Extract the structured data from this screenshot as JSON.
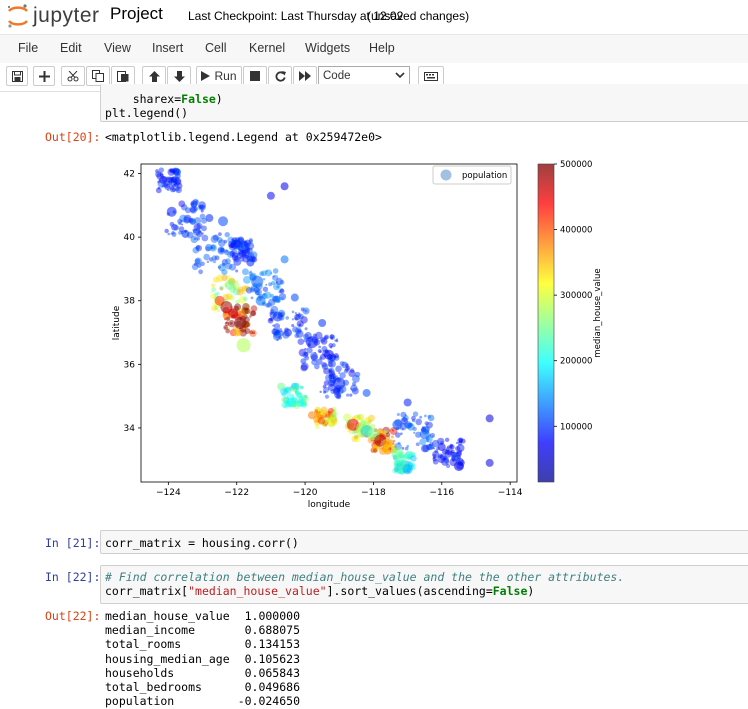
{
  "header": {
    "logo_text": "jupyter",
    "notebook_title": "Project",
    "checkpoint": "Last Checkpoint: Last Thursday at 12:02",
    "unsaved": "(unsaved changes)"
  },
  "menu": [
    "File",
    "Edit",
    "View",
    "Insert",
    "Cell",
    "Kernel",
    "Widgets",
    "Help"
  ],
  "toolbar": {
    "run_label": "Run",
    "cell_type": "Code",
    "icons": [
      "save-icon",
      "plus-icon",
      "cut-icon",
      "copy-icon",
      "paste-icon",
      "arrow-up-icon",
      "arrow-down-icon",
      "run-icon",
      "stop-icon",
      "restart-icon",
      "fast-forward-icon",
      "keyboard-icon"
    ]
  },
  "cells": {
    "c20": {
      "code_tail_1_pre": "    sharex=",
      "code_tail_1_kw": "False",
      "code_tail_1_post": ")",
      "code_tail_2": "plt.legend()",
      "out_prompt": "Out[20]:",
      "out_text": "<matplotlib.legend.Legend at 0x259472e0>"
    },
    "c21": {
      "in_prompt": "In [21]:",
      "code": "corr_matrix = housing.corr()"
    },
    "c22": {
      "in_prompt": "In [22]:",
      "comment": "# Find correlation between median_house_value and the the other attributes.",
      "code_pre": "corr_matrix[",
      "code_str": "\"median_house_value\"",
      "code_mid": "].sort_values(ascending=",
      "code_kw": "False",
      "code_post": ")",
      "out_prompt": "Out[22]:",
      "rows": [
        {
          "name": "median_house_value",
          "value": "1.000000"
        },
        {
          "name": "median_income",
          "value": "0.688075"
        },
        {
          "name": "total_rooms",
          "value": "0.134153"
        },
        {
          "name": "housing_median_age",
          "value": "0.105623"
        },
        {
          "name": "households",
          "value": "0.065843"
        },
        {
          "name": "total_bedrooms",
          "value": "0.049686"
        },
        {
          "name": "population",
          "value": "-0.024650"
        }
      ]
    }
  },
  "chart_data": {
    "type": "scatter",
    "xlabel": "longitude",
    "ylabel": "latitude",
    "xlim": [
      -124.8,
      -113.8
    ],
    "ylim": [
      32.3,
      42.3
    ],
    "xticks": [
      -124,
      -122,
      -120,
      -118,
      -116,
      -114
    ],
    "yticks": [
      34,
      36,
      38,
      40,
      42
    ],
    "legend": {
      "label": "population",
      "location": "top-right"
    },
    "colorbar": {
      "label": "median_house_value",
      "range": [
        15000,
        500000
      ],
      "ticks": [
        100000,
        200000,
        300000,
        400000,
        500000
      ],
      "colormap": "jet"
    },
    "points": [
      {
        "x": -124.15,
        "y": 41.8,
        "v": 80000,
        "s": 4
      },
      {
        "x": -123.9,
        "y": 40.8,
        "v": 90000,
        "s": 5
      },
      {
        "x": -123.5,
        "y": 40.1,
        "v": 100000,
        "s": 4
      },
      {
        "x": -122.8,
        "y": 40.6,
        "v": 95000,
        "s": 4
      },
      {
        "x": -122.4,
        "y": 40.5,
        "v": 110000,
        "s": 5
      },
      {
        "x": -122.0,
        "y": 39.8,
        "v": 90000,
        "s": 4
      },
      {
        "x": -121.8,
        "y": 39.7,
        "v": 100000,
        "s": 6
      },
      {
        "x": -121.6,
        "y": 39.2,
        "v": 95000,
        "s": 4
      },
      {
        "x": -122.2,
        "y": 38.5,
        "v": 250000,
        "s": 5
      },
      {
        "x": -122.5,
        "y": 38.0,
        "v": 420000,
        "s": 5
      },
      {
        "x": -122.3,
        "y": 37.8,
        "v": 480000,
        "s": 6
      },
      {
        "x": -122.1,
        "y": 37.6,
        "v": 450000,
        "s": 5
      },
      {
        "x": -121.9,
        "y": 37.3,
        "v": 500000,
        "s": 6
      },
      {
        "x": -122.0,
        "y": 37.0,
        "v": 350000,
        "s": 4
      },
      {
        "x": -121.8,
        "y": 36.6,
        "v": 280000,
        "s": 7
      },
      {
        "x": -121.4,
        "y": 38.6,
        "v": 120000,
        "s": 6
      },
      {
        "x": -121.3,
        "y": 38.0,
        "v": 130000,
        "s": 5
      },
      {
        "x": -120.8,
        "y": 37.5,
        "v": 100000,
        "s": 5
      },
      {
        "x": -120.5,
        "y": 37.0,
        "v": 90000,
        "s": 4
      },
      {
        "x": -119.8,
        "y": 36.7,
        "v": 85000,
        "s": 6
      },
      {
        "x": -119.3,
        "y": 36.3,
        "v": 80000,
        "s": 5
      },
      {
        "x": -119.0,
        "y": 35.4,
        "v": 90000,
        "s": 6
      },
      {
        "x": -120.7,
        "y": 35.3,
        "v": 250000,
        "s": 4
      },
      {
        "x": -120.4,
        "y": 34.8,
        "v": 200000,
        "s": 5
      },
      {
        "x": -119.8,
        "y": 34.4,
        "v": 380000,
        "s": 4
      },
      {
        "x": -119.2,
        "y": 34.2,
        "v": 300000,
        "s": 5
      },
      {
        "x": -118.6,
        "y": 34.1,
        "v": 450000,
        "s": 6
      },
      {
        "x": -118.3,
        "y": 34.0,
        "v": 280000,
        "s": 7
      },
      {
        "x": -118.2,
        "y": 33.9,
        "v": 180000,
        "s": 6
      },
      {
        "x": -118.0,
        "y": 33.8,
        "v": 260000,
        "s": 6
      },
      {
        "x": -117.8,
        "y": 33.6,
        "v": 480000,
        "s": 6
      },
      {
        "x": -117.6,
        "y": 33.5,
        "v": 350000,
        "s": 5
      },
      {
        "x": -117.3,
        "y": 33.2,
        "v": 250000,
        "s": 6
      },
      {
        "x": -117.2,
        "y": 32.8,
        "v": 230000,
        "s": 7
      },
      {
        "x": -117.0,
        "y": 32.7,
        "v": 160000,
        "s": 5
      },
      {
        "x": -117.3,
        "y": 34.1,
        "v": 110000,
        "s": 5
      },
      {
        "x": -116.5,
        "y": 33.8,
        "v": 120000,
        "s": 5
      },
      {
        "x": -116.0,
        "y": 33.4,
        "v": 80000,
        "s": 4
      },
      {
        "x": -115.5,
        "y": 32.8,
        "v": 70000,
        "s": 5
      },
      {
        "x": -114.6,
        "y": 32.9,
        "v": 60000,
        "s": 4
      },
      {
        "x": -114.6,
        "y": 34.3,
        "v": 60000,
        "s": 4
      },
      {
        "x": -117.0,
        "y": 34.8,
        "v": 90000,
        "s": 4
      },
      {
        "x": -118.2,
        "y": 35.1,
        "v": 110000,
        "s": 4
      },
      {
        "x": -119.5,
        "y": 37.3,
        "v": 100000,
        "s": 4
      },
      {
        "x": -120.3,
        "y": 38.1,
        "v": 110000,
        "s": 4
      },
      {
        "x": -120.6,
        "y": 39.3,
        "v": 130000,
        "s": 4
      },
      {
        "x": -120.6,
        "y": 41.6,
        "v": 70000,
        "s": 4
      },
      {
        "x": -121.0,
        "y": 41.3,
        "v": 80000,
        "s": 4
      }
    ]
  }
}
